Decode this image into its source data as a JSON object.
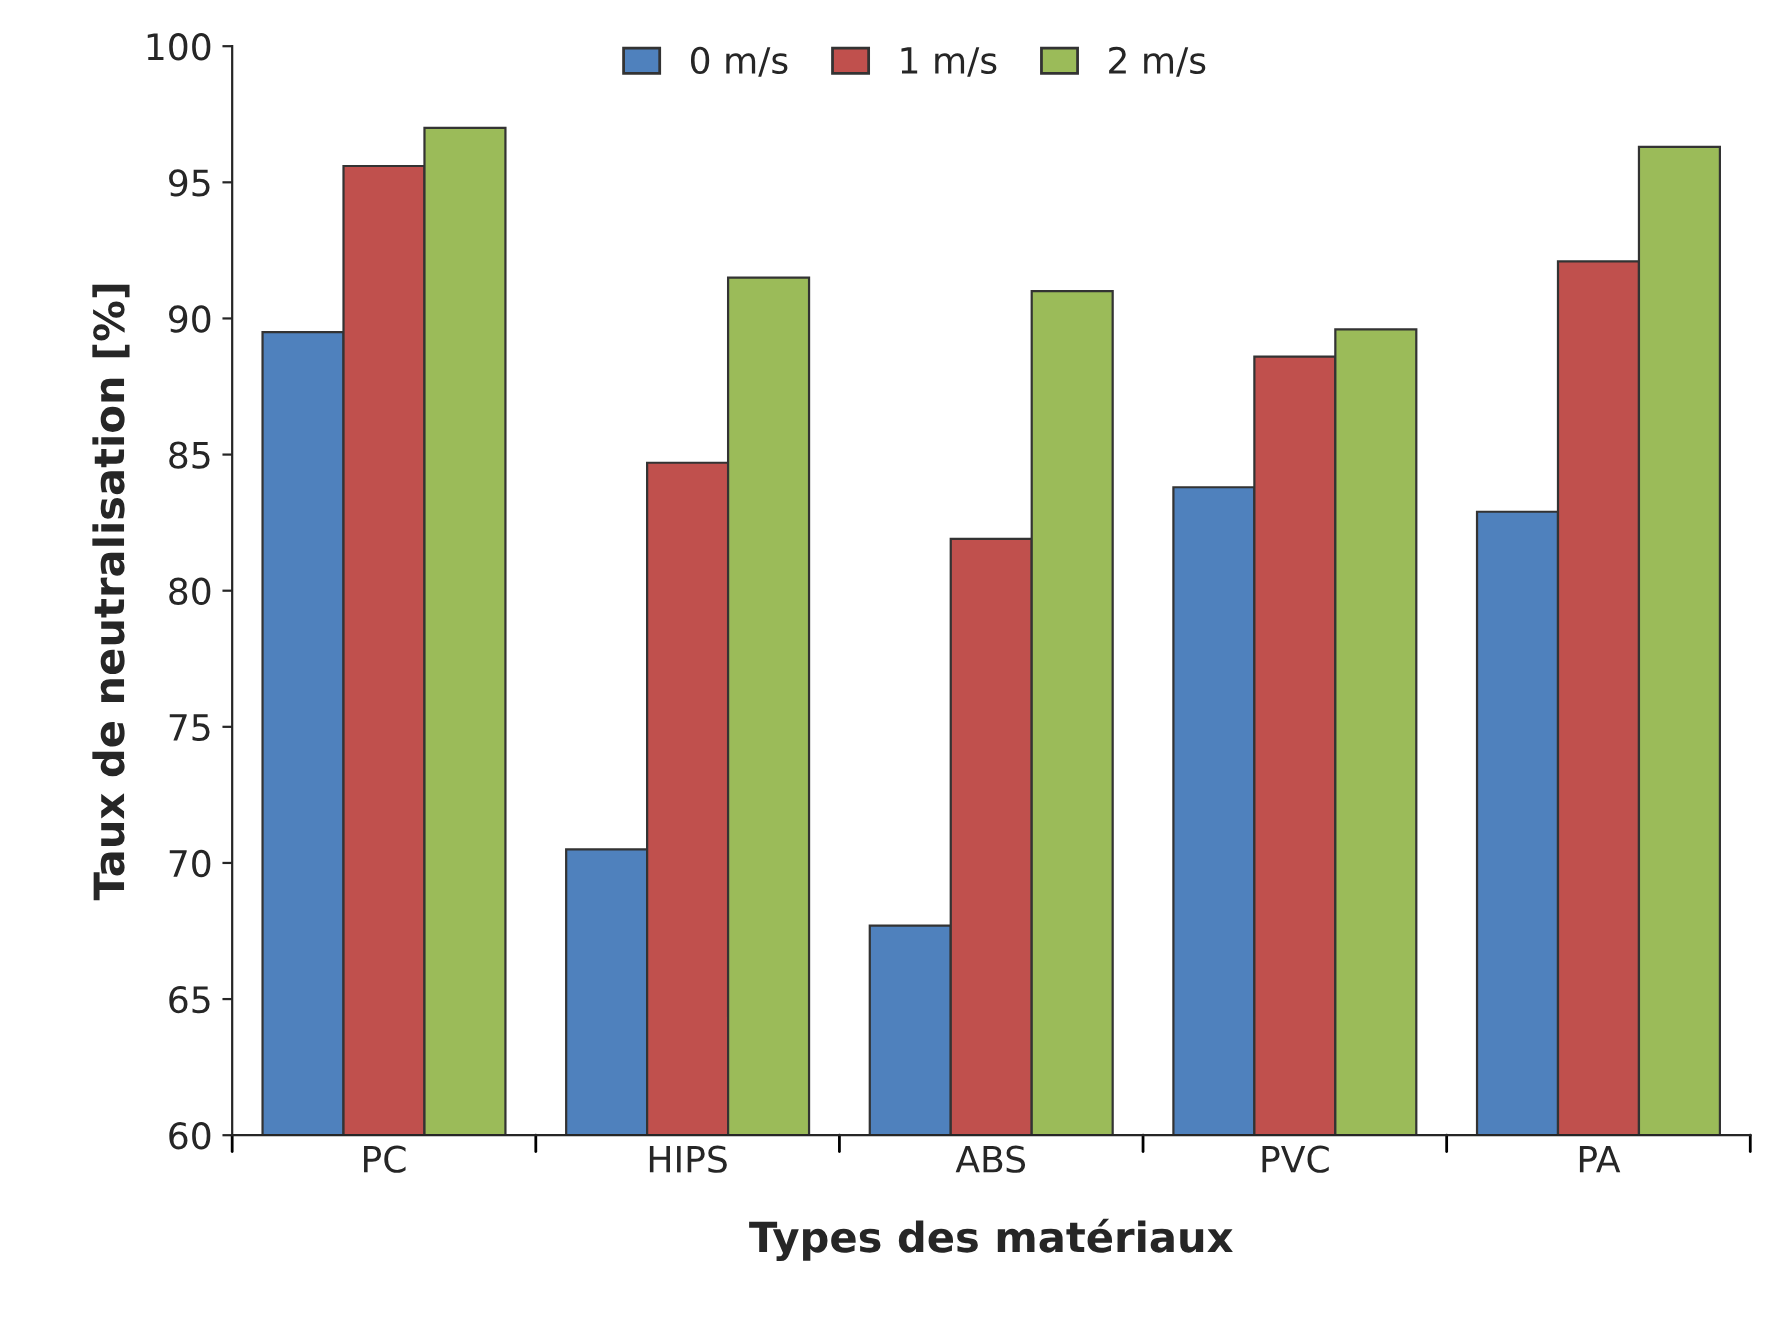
{
  "chart_data": {
    "type": "bar",
    "xlabel": "Types des matériaux",
    "ylabel": "Taux de neutralisation [%]",
    "categories": [
      "PC",
      "HIPS",
      "ABS",
      "PVC",
      "PA"
    ],
    "series": [
      {
        "name": "0 m/s",
        "color": "#4f81bd",
        "values": [
          89.5,
          70.5,
          67.7,
          83.8,
          82.9
        ]
      },
      {
        "name": "1 m/s",
        "color": "#c0504d",
        "values": [
          95.6,
          84.7,
          81.9,
          88.6,
          92.1
        ]
      },
      {
        "name": "2 m/s",
        "color": "#9bbb59",
        "values": [
          97.0,
          91.5,
          91.0,
          89.6,
          96.3
        ]
      }
    ],
    "ylim": [
      60,
      100
    ],
    "yticks": [
      60,
      65,
      70,
      75,
      80,
      85,
      90,
      95,
      100
    ],
    "grid": false,
    "legend": "top"
  }
}
